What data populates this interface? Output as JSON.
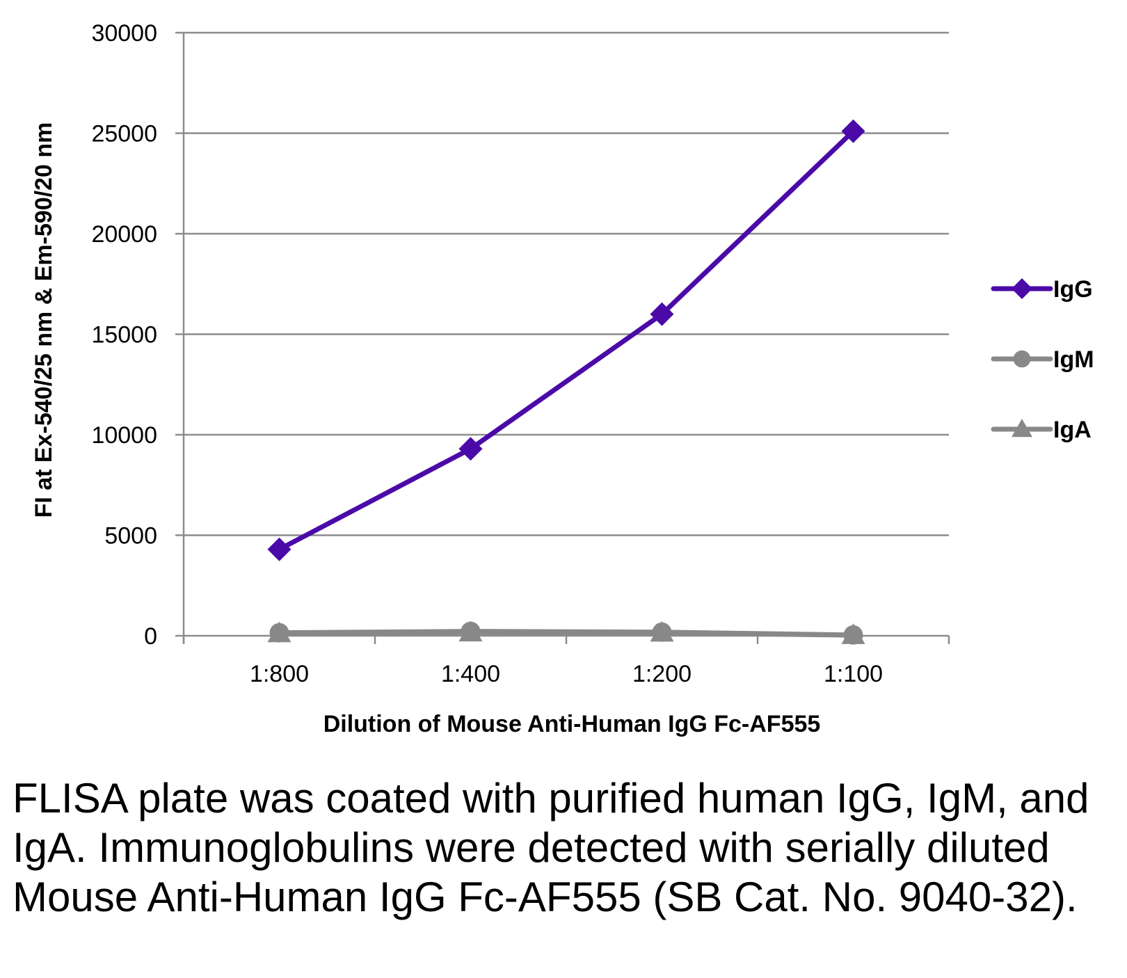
{
  "chart_data": {
    "type": "line",
    "categories": [
      "1:800",
      "1:400",
      "1:200",
      "1:100"
    ],
    "series": [
      {
        "name": "IgG",
        "values": [
          4300,
          9300,
          16000,
          25100
        ],
        "color": "#4b0aa8",
        "marker": "diamond"
      },
      {
        "name": "IgM",
        "values": [
          150,
          220,
          180,
          40
        ],
        "color": "#888888",
        "marker": "circle"
      },
      {
        "name": "IgA",
        "values": [
          120,
          160,
          150,
          30
        ],
        "color": "#888888",
        "marker": "triangle"
      }
    ],
    "xlabel": "Dilution of Mouse Anti-Human IgG Fc-AF555",
    "ylabel": "FI at Ex-540/25 nm & Em-590/20 nm",
    "ylim": [
      0,
      30000
    ],
    "yticks": [
      0,
      5000,
      10000,
      15000,
      20000,
      25000,
      30000
    ],
    "grid": "horizontal",
    "legend": "right"
  },
  "caption": "FLISA plate was coated with purified human IgG, IgM, and IgA.  Immunoglobulins were detected with serially diluted Mouse Anti-Human IgG Fc-AF555 (SB Cat. No. 9040-32)."
}
